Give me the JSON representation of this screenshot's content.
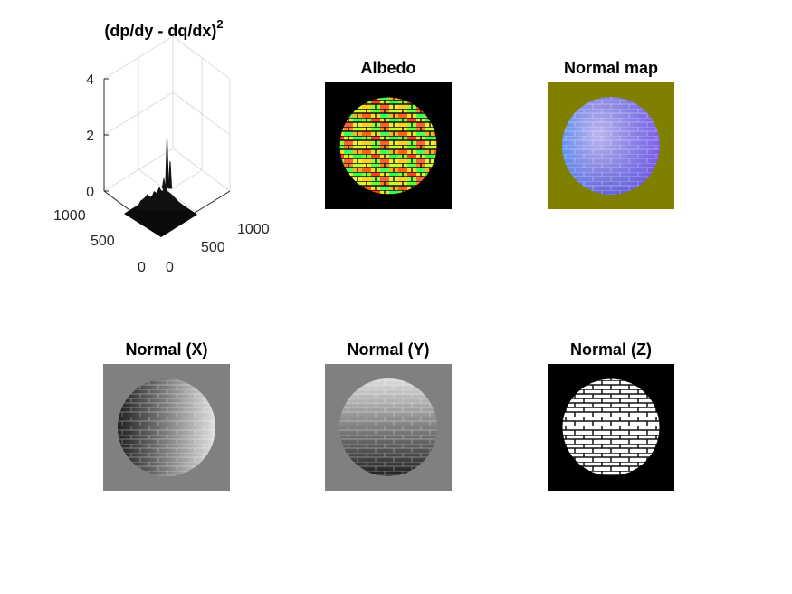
{
  "figure": {
    "panels": [
      {
        "id": "surface",
        "title_main": "(dp/dy - dq/dx)",
        "title_sup": "2"
      },
      {
        "id": "albedo",
        "title": "Albedo"
      },
      {
        "id": "normal-map",
        "title": "Normal map"
      },
      {
        "id": "normal-x",
        "title": "Normal (X)"
      },
      {
        "id": "normal-y",
        "title": "Normal (Y)"
      },
      {
        "id": "normal-z",
        "title": "Normal (Z)"
      }
    ],
    "colors": {
      "albedo_background": "#000000",
      "normal_map_background": "#808000",
      "normal_xy_background": "#808080",
      "normal_z_background": "#000000"
    }
  },
  "chart_data": [
    {
      "type": "surface",
      "title": "(dp/dy - dq/dx)^2",
      "x_ticks": [
        "0",
        "500",
        "1000"
      ],
      "y_ticks": [
        "0",
        "500",
        "1000"
      ],
      "z_ticks": [
        "0",
        "2",
        "4"
      ],
      "xlim": [
        0,
        1000
      ],
      "ylim": [
        0,
        1000
      ],
      "zlim": [
        0,
        4
      ],
      "grid": true,
      "peaks": [
        {
          "x": 500,
          "y": 500,
          "z": 1.9
        },
        {
          "x": 520,
          "y": 470,
          "z": 1.1
        },
        {
          "x": 470,
          "y": 520,
          "z": 0.5
        }
      ]
    },
    {
      "type": "image",
      "title": "Albedo"
    },
    {
      "type": "image",
      "title": "Normal map"
    },
    {
      "type": "image",
      "title": "Normal (X)"
    },
    {
      "type": "image",
      "title": "Normal (Y)"
    },
    {
      "type": "image",
      "title": "Normal (Z)"
    }
  ]
}
